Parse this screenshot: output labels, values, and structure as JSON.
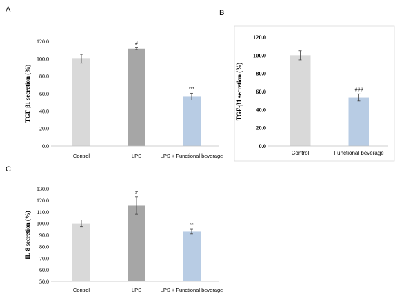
{
  "panel_labels": [
    "A",
    "B",
    "C"
  ],
  "colors": {
    "light_gray": "#d9d9d9",
    "dark_gray": "#a6a6a6",
    "light_blue": "#b8cce4",
    "axis": "#bfbfbf",
    "errbar": "#404040"
  },
  "chart_data": [
    {
      "panel": "A",
      "type": "bar",
      "ylabel": "TGF-β1 secretion (%)",
      "categories": [
        "Control",
        "LPS",
        "LPS + Functional beverage"
      ],
      "values": [
        100.0,
        111.5,
        56.5
      ],
      "errors": [
        5.0,
        1.0,
        4.0
      ],
      "annotations": [
        "",
        "#",
        "***"
      ],
      "colors": [
        "#d9d9d9",
        "#a6a6a6",
        "#b8cce4"
      ],
      "ylim": [
        0,
        120
      ],
      "yticks": [
        "0.0",
        "20.0",
        "40.0",
        "60.0",
        "80.0",
        "100.0",
        "120.0"
      ],
      "grid": false
    },
    {
      "panel": "B",
      "type": "bar",
      "ylabel": "TGF-β1 secretion (%)",
      "categories": [
        "Control",
        "Functional beverage"
      ],
      "values": [
        100.0,
        53.5
      ],
      "errors": [
        5.0,
        4.0
      ],
      "annotations": [
        "",
        "###"
      ],
      "colors": [
        "#d9d9d9",
        "#b8cce4"
      ],
      "ylim": [
        0,
        120
      ],
      "yticks": [
        "0.0",
        "20.0",
        "40.0",
        "60.0",
        "80.0",
        "100.0",
        "120.0"
      ],
      "grid": false
    },
    {
      "panel": "C",
      "type": "bar",
      "ylabel": "IL-8 secretion (%)",
      "categories": [
        "Control",
        "LPS",
        "LPS + Functional beverage"
      ],
      "values": [
        100.0,
        115.5,
        93.0
      ],
      "errors": [
        3.0,
        7.5,
        2.0
      ],
      "annotations": [
        "",
        "#",
        "**"
      ],
      "colors": [
        "#d9d9d9",
        "#a6a6a6",
        "#b8cce4"
      ],
      "ylim": [
        50,
        130
      ],
      "yticks": [
        "50.0",
        "60.0",
        "70.0",
        "80.0",
        "90.0",
        "100.0",
        "110.0",
        "120.0",
        "130.0"
      ],
      "grid": false
    }
  ]
}
